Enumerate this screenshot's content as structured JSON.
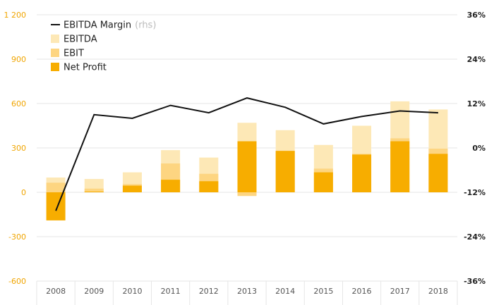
{
  "chart_data": {
    "type": "bar",
    "categories": [
      "2008",
      "2009",
      "2010",
      "2011",
      "2012",
      "2013",
      "2014",
      "2015",
      "2016",
      "2017",
      "2018"
    ],
    "series": [
      {
        "name": "EBITDA",
        "kind": "bar-overlay",
        "values": [
          100,
          90,
          135,
          285,
          235,
          470,
          420,
          320,
          450,
          615,
          560
        ]
      },
      {
        "name": "EBIT",
        "kind": "bar-overlay",
        "values": [
          65,
          25,
          55,
          195,
          125,
          -25,
          280,
          160,
          260,
          365,
          295
        ]
      },
      {
        "name": "Net Profit",
        "kind": "bar-overlay",
        "values": [
          -190,
          5,
          45,
          85,
          75,
          345,
          280,
          135,
          255,
          345,
          260
        ]
      },
      {
        "name": "EBITDA Margin",
        "kind": "line",
        "axis": "right",
        "values": [
          -0.17,
          0.09,
          0.08,
          0.115,
          0.095,
          0.135,
          0.11,
          0.065,
          0.085,
          0.1,
          0.095
        ]
      }
    ],
    "y_left": {
      "ylim": [
        -600,
        1200
      ],
      "ticks": [
        -600,
        -300,
        0,
        300,
        600,
        900,
        1200
      ],
      "tick_labels": [
        "-600",
        "-300",
        "0",
        "300",
        "600",
        "900",
        "1 200"
      ]
    },
    "y_right": {
      "ylim": [
        -0.36,
        0.36
      ],
      "ticks": [
        -0.36,
        -0.24,
        -0.12,
        0,
        0.12,
        0.24,
        0.36
      ],
      "tick_labels": [
        "-36%",
        "-24%",
        "-12%",
        "0%",
        "12%",
        "24%",
        "36%"
      ]
    },
    "legend": {
      "placement": "top-left",
      "items": [
        {
          "label": "EBITDA Margin",
          "note": "(rhs)",
          "kind": "line"
        },
        {
          "label": "EBITDA",
          "kind": "box"
        },
        {
          "label": "EBIT",
          "kind": "box"
        },
        {
          "label": "Net Profit",
          "kind": "box"
        }
      ]
    },
    "grid": "horizontal",
    "colors": {
      "EBITDA": "#fde8b6",
      "EBIT": "#fdd581",
      "Net Profit": "#f7ad00",
      "EBITDA Margin": "#111111",
      "left_ticks": "#f0a500",
      "right_ticks": "#222222",
      "grid": "#e6e6e6"
    }
  }
}
